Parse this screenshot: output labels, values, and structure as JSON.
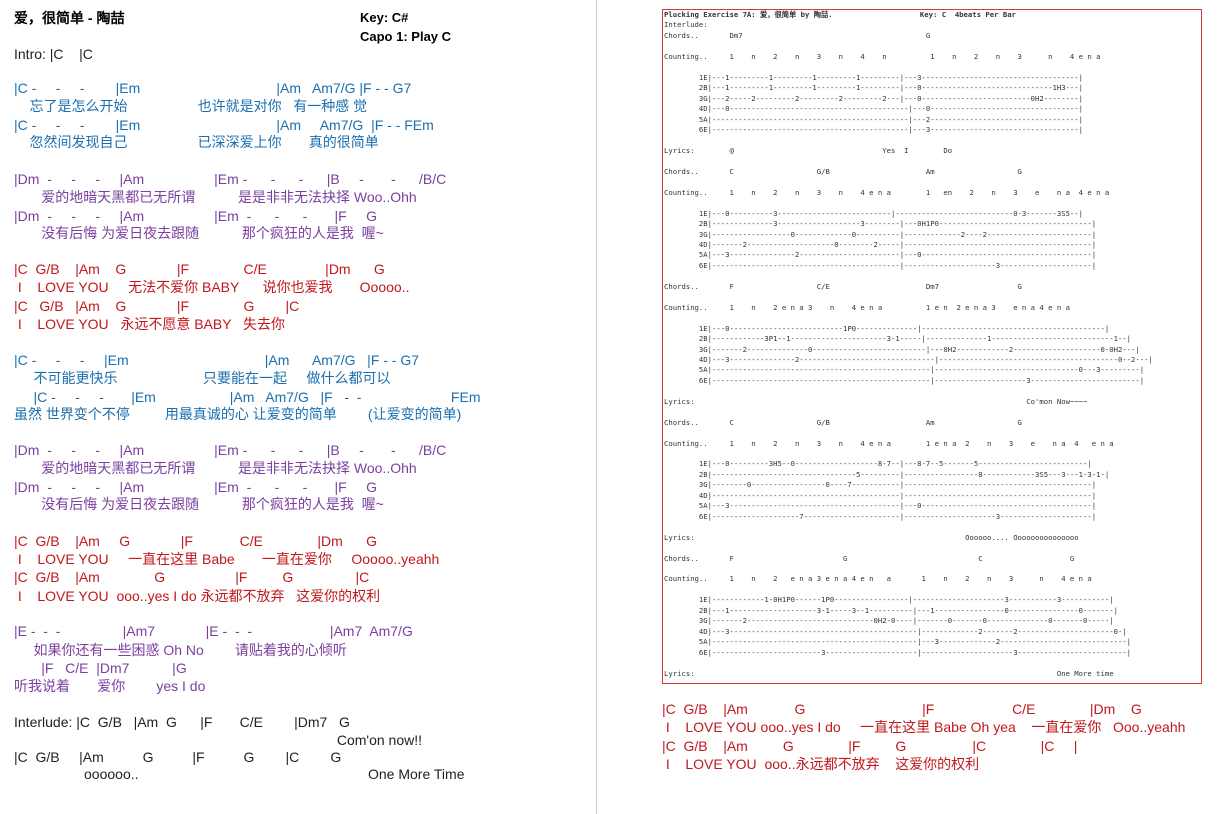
{
  "header": {
    "title": "爱，很简单 - 陶喆",
    "key": "Key: C#",
    "capo": "Capo 1: Play C"
  },
  "colors": {
    "black": "#222222",
    "blue": "#1a6fb0",
    "purple": "#7b3fa0",
    "red": "#c0181d",
    "tab_border": "#d43a3a"
  },
  "left_sheet": {
    "lines": [
      {
        "text": "Intro: |C    |C",
        "color": "black"
      },
      {
        "text": "|C -     -     -        |Em                                   |Am   Am7/G |F - - G7",
        "color": "blue"
      },
      {
        "text": "    忘了是怎么开始                  也许就是对你   有一种感 觉",
        "color": "blue"
      },
      {
        "text": "|C -     -     -        |Em                                   |Am     Am7/G  |F - - FEm",
        "color": "blue"
      },
      {
        "text": "    忽然间发现自己                  已深深爱上你       真的很简单",
        "color": "blue"
      },
      {
        "text": "|Dm  -     -     -     |Am                  |Em -      -      -      |B     -       -      /B/C",
        "color": "purple"
      },
      {
        "text": "       爱的地暗天黑都已无所谓           是是非非无法抉择 Woo..Ohh",
        "color": "purple"
      },
      {
        "text": "|Dm  -     -     -     |Am                  |Em  -      -      -       |F     G",
        "color": "purple"
      },
      {
        "text": "       没有后悔 为爱日夜去跟随           那个疯狂的人是我  喔~",
        "color": "purple"
      },
      {
        "text": "|C  G/B    |Am    G             |F              C/E               |Dm      G",
        "color": "red"
      },
      {
        "text": " I    LOVE YOU     无法不爱你 BABY      说你也爱我       Ooooo..",
        "color": "red"
      },
      {
        "text": "|C   G/B   |Am    G             |F              G        |C",
        "color": "red"
      },
      {
        "text": " I    LOVE YOU   永远不愿意 BABY   失去你",
        "color": "red"
      },
      {
        "text": "|C -     -     -     |Em                                   |Am      Am7/G   |F - - G7",
        "color": "blue"
      },
      {
        "text": "     不可能更快乐                      只要能在一起     做什么都可以",
        "color": "blue"
      },
      {
        "text": "     |C -     -     -       |Em                   |Am   Am7/G   |F   -  -                       FEm",
        "color": "blue"
      },
      {
        "text": "虽然 世界变个不停         用最真诚的心 让爱变的简单        (让爱变的简单)",
        "color": "blue"
      },
      {
        "text": "|Dm  -     -     -     |Am                  |Em -      -      -      |B     -       -      /B/C",
        "color": "purple"
      },
      {
        "text": "       爱的地暗天黑都已无所谓           是是非非无法抉择 Woo..Ohh",
        "color": "purple"
      },
      {
        "text": "|Dm  -     -     -     |Am                  |Em  -      -      -       |F     G",
        "color": "purple"
      },
      {
        "text": "       没有后悔 为爱日夜去跟随           那个疯狂的人是我  喔~",
        "color": "purple"
      },
      {
        "text": "|C  G/B    |Am     G             |F            C/E              |Dm      G",
        "color": "red"
      },
      {
        "text": " I    LOVE YOU     一直在这里 Babe       一直在爱你     Ooooo..yeahh",
        "color": "red"
      },
      {
        "text": "|C  G/B    |Am              G                  |F         G                |C",
        "color": "red"
      },
      {
        "text": " I    LOVE YOU  ooo..yes I do 永远都不放弃   这爱你的权利",
        "color": "red"
      },
      {
        "text": "|E -  -  -                |Am7             |E -  -  -                    |Am7  Am7/G",
        "color": "purple"
      },
      {
        "text": "     如果你还有一些困惑 Oh No        请贴着我的心倾听",
        "color": "purple"
      },
      {
        "text": "       |F   C/E  |Dm7           |G",
        "color": "purple"
      },
      {
        "text": "听我说着       爱你        yes I do",
        "color": "purple"
      },
      {
        "text": "Interlude: |C  G/B   |Am  G      |F       C/E        |Dm7   G",
        "color": "black"
      },
      {
        "text": "                                                                                   Com'on now!!",
        "color": "black"
      },
      {
        "text": "|C  G/B     |Am          G          |F          G        |C        G",
        "color": "black"
      },
      {
        "text": "                  oooooo..                                                           One More Time",
        "color": "black"
      }
    ]
  },
  "tab_sheet": {
    "header": "Plucking Exercise 7A: 爱，很简单 by 陶喆.                    Key: C  4beats Per Bar",
    "body": [
      "Interlude:",
      "Chords..       Dm7                                          G",
      "",
      "Counting..     1    n    2    n    3    n    4    n          1    n    2    n    3      n    4 e n a",
      "",
      "        1E|---1---------1---------1---------1---------|---3------------------------------------|",
      "        2B|---1---------1---------1---------1---------|---0------------------------------1H3---|",
      "        3G|---2-----2---------2---------2---------2---|---0-------------------------0H2--------|",
      "        4D|---0-----------------------------------------|---0----------------------------------|",
      "        5A|---------------------------------------------|---2----------------------------------|",
      "        6E|---------------------------------------------|---3----------------------------------|",
      "",
      "Lyrics:        @                                  Yes  I        Do",
      "",
      "Chords..       C                   G/B                      Am                   G",
      "",
      "Counting..     1    n    2    n    3    n    4 e n a        1   en    2    n    3    e    n a  4 e n a",
      "",
      "        1E|---0----------3--------------------------|---------------------------0-3-------3S5--|",
      "        2B|--------------3-------------------3--------|---0H1P0-----------------------------------|",
      "        3G|------------------0-------------0----------|-------------2----2------------------------|",
      "        4D|-------2--------------------0--------2-----|-------------------------------------------|",
      "        5A|---3---------------2-----------------------|---0---------------------------------------|",
      "        6E|-------------------------------------------|---------------------3---------------------|",
      "",
      "Chords..       F                   C/E                      Dm7                  G",
      "",
      "Counting..     1    n    2 e n a 3    n    4 e n a          1 e n  2 e n a 3    e n a 4 e n a",
      "",
      "        1E|---0--------------------------1P0--------------|------------------------------------------|",
      "        2B|------------3P1--1----------------------3-1-----|--------------1----------------------------1--|",
      "        3G|-------2--------------0--------------------------|---0H2------------2--------------------0-0H2---|",
      "        4D|---3---------------2-------------------------------|-----------------------------------------0--2---|",
      "        5A|--------------------------------------------------|---------------------------------0---3---------|",
      "        6E|--------------------------------------------------|---------------------3-------------------------|",
      "",
      "Lyrics:                                                                            Co'mon Now~~~~",
      "",
      "Chords..       C                   G/B                      Am                   G",
      "",
      "Counting..     1    n    2    n    3    n    4 e n a        1 e n a  2    n    3    e    n a  4   e n a",
      "",
      "        1E|---0---------3H5--0-------------------8-7--|---8-7--5-------5-------------------------|",
      "        2B|---------------------------------5---------|-----------------8------------3S5---3---1-3-1-|",
      "        3G|--------0-----------------0----7-----------|-------------------------------------------|",
      "        4D|-------------------------------------------|-------------------------------------------|",
      "        5A|---3---------------------------------------|---0---------------------------------------|",
      "        6E|--------------------7----------------------|---------------------3---------------------|",
      "",
      "Lyrics:                                                              Oooooo.... Ooooooooooooooo",
      "",
      "Chords..       F                         G                              C                    G",
      "",
      "Counting..     1    n    2   e n a 3 e n a 4 e n   a       1    n    2    n    3      n    4 e n a",
      "",
      "        1E|------------1-0H1P0------1P0-----------------|---------------------3-----------3-----------|",
      "        2B|---1--------------------3-1-----3--1----------|---1----------------0----------------0-------|",
      "        3G|-------2-----------------------------0H2-0----|-------0-------0--------------0-------0-----|",
      "        4D|---3-------------------------------------------|-------------2-------2----------------------0-|",
      "        5A|-----------------------------------------------|---3-------------2-----------------------------|",
      "        6E|-------------------------3---------------------|---------------------3-------------------------|",
      "",
      "Lyrics:                                                                                   One More time"
    ]
  },
  "bottom_right": {
    "lines": [
      {
        "text": "|C  G/B    |Am            G                              |F                    C/E              |Dm    G",
        "color": "red"
      },
      {
        "text": " I    LOVE YOU ooo..yes I do     一直在这里 Babe Oh yea    一直在爱你   Ooo..yeahh",
        "color": "red"
      },
      {
        "text": "|C  G/B    |Am         G              |F         G                 |C              |C     |",
        "color": "red"
      },
      {
        "text": " I    LOVE YOU  ooo..永远都不放弃    这爱你的权利",
        "color": "red"
      }
    ]
  }
}
